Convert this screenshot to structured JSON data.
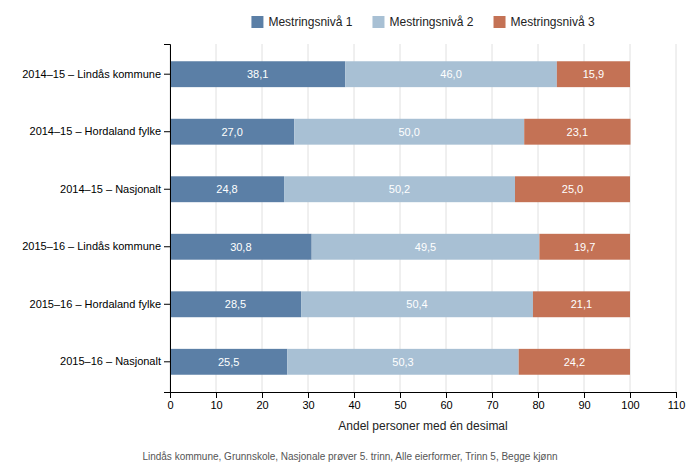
{
  "chart_data": {
    "type": "bar",
    "orientation": "horizontal",
    "stacked": true,
    "data_labels": true,
    "grid": true,
    "legend": "top",
    "categories": [
      "2014–15 – Lindås kommune",
      "2014–15 – Hordaland fylke",
      "2014–15 – Nasjonalt",
      "2015–16 – Lindås kommune",
      "2015–16 – Hordaland fylke",
      "2015–16 – Nasjonalt"
    ],
    "series": [
      {
        "name": "Mestringsnivå 1",
        "color": "#5b7fa6",
        "values": [
          38.1,
          27.0,
          24.8,
          30.8,
          28.5,
          25.5
        ],
        "value_labels": [
          "38,1",
          "27,0",
          "24,8",
          "30,8",
          "28,5",
          "25,5"
        ]
      },
      {
        "name": "Mestringsnivå 2",
        "color": "#a8c0d4",
        "values": [
          46.0,
          50.0,
          50.2,
          49.5,
          50.4,
          50.3
        ],
        "value_labels": [
          "46,0",
          "50,0",
          "50,2",
          "49,5",
          "50,4",
          "50,3"
        ]
      },
      {
        "name": "Mestringsnivå 3",
        "color": "#c47255",
        "values": [
          15.9,
          23.1,
          25.0,
          19.7,
          21.1,
          24.2
        ],
        "value_labels": [
          "15,9",
          "23,1",
          "25,0",
          "19,7",
          "21,1",
          "24,2"
        ]
      }
    ],
    "xlabel": "Andel personer med én desimal",
    "xlim": [
      0,
      110
    ],
    "xticks": [
      0,
      10,
      20,
      30,
      40,
      50,
      60,
      70,
      80,
      90,
      100,
      110
    ],
    "annotations": [
      "Lindås kommune, Grunnskole, Nasjonale prøver 5. trinn, Alle eierformer, Trinn 5, Begge kjønn"
    ]
  }
}
